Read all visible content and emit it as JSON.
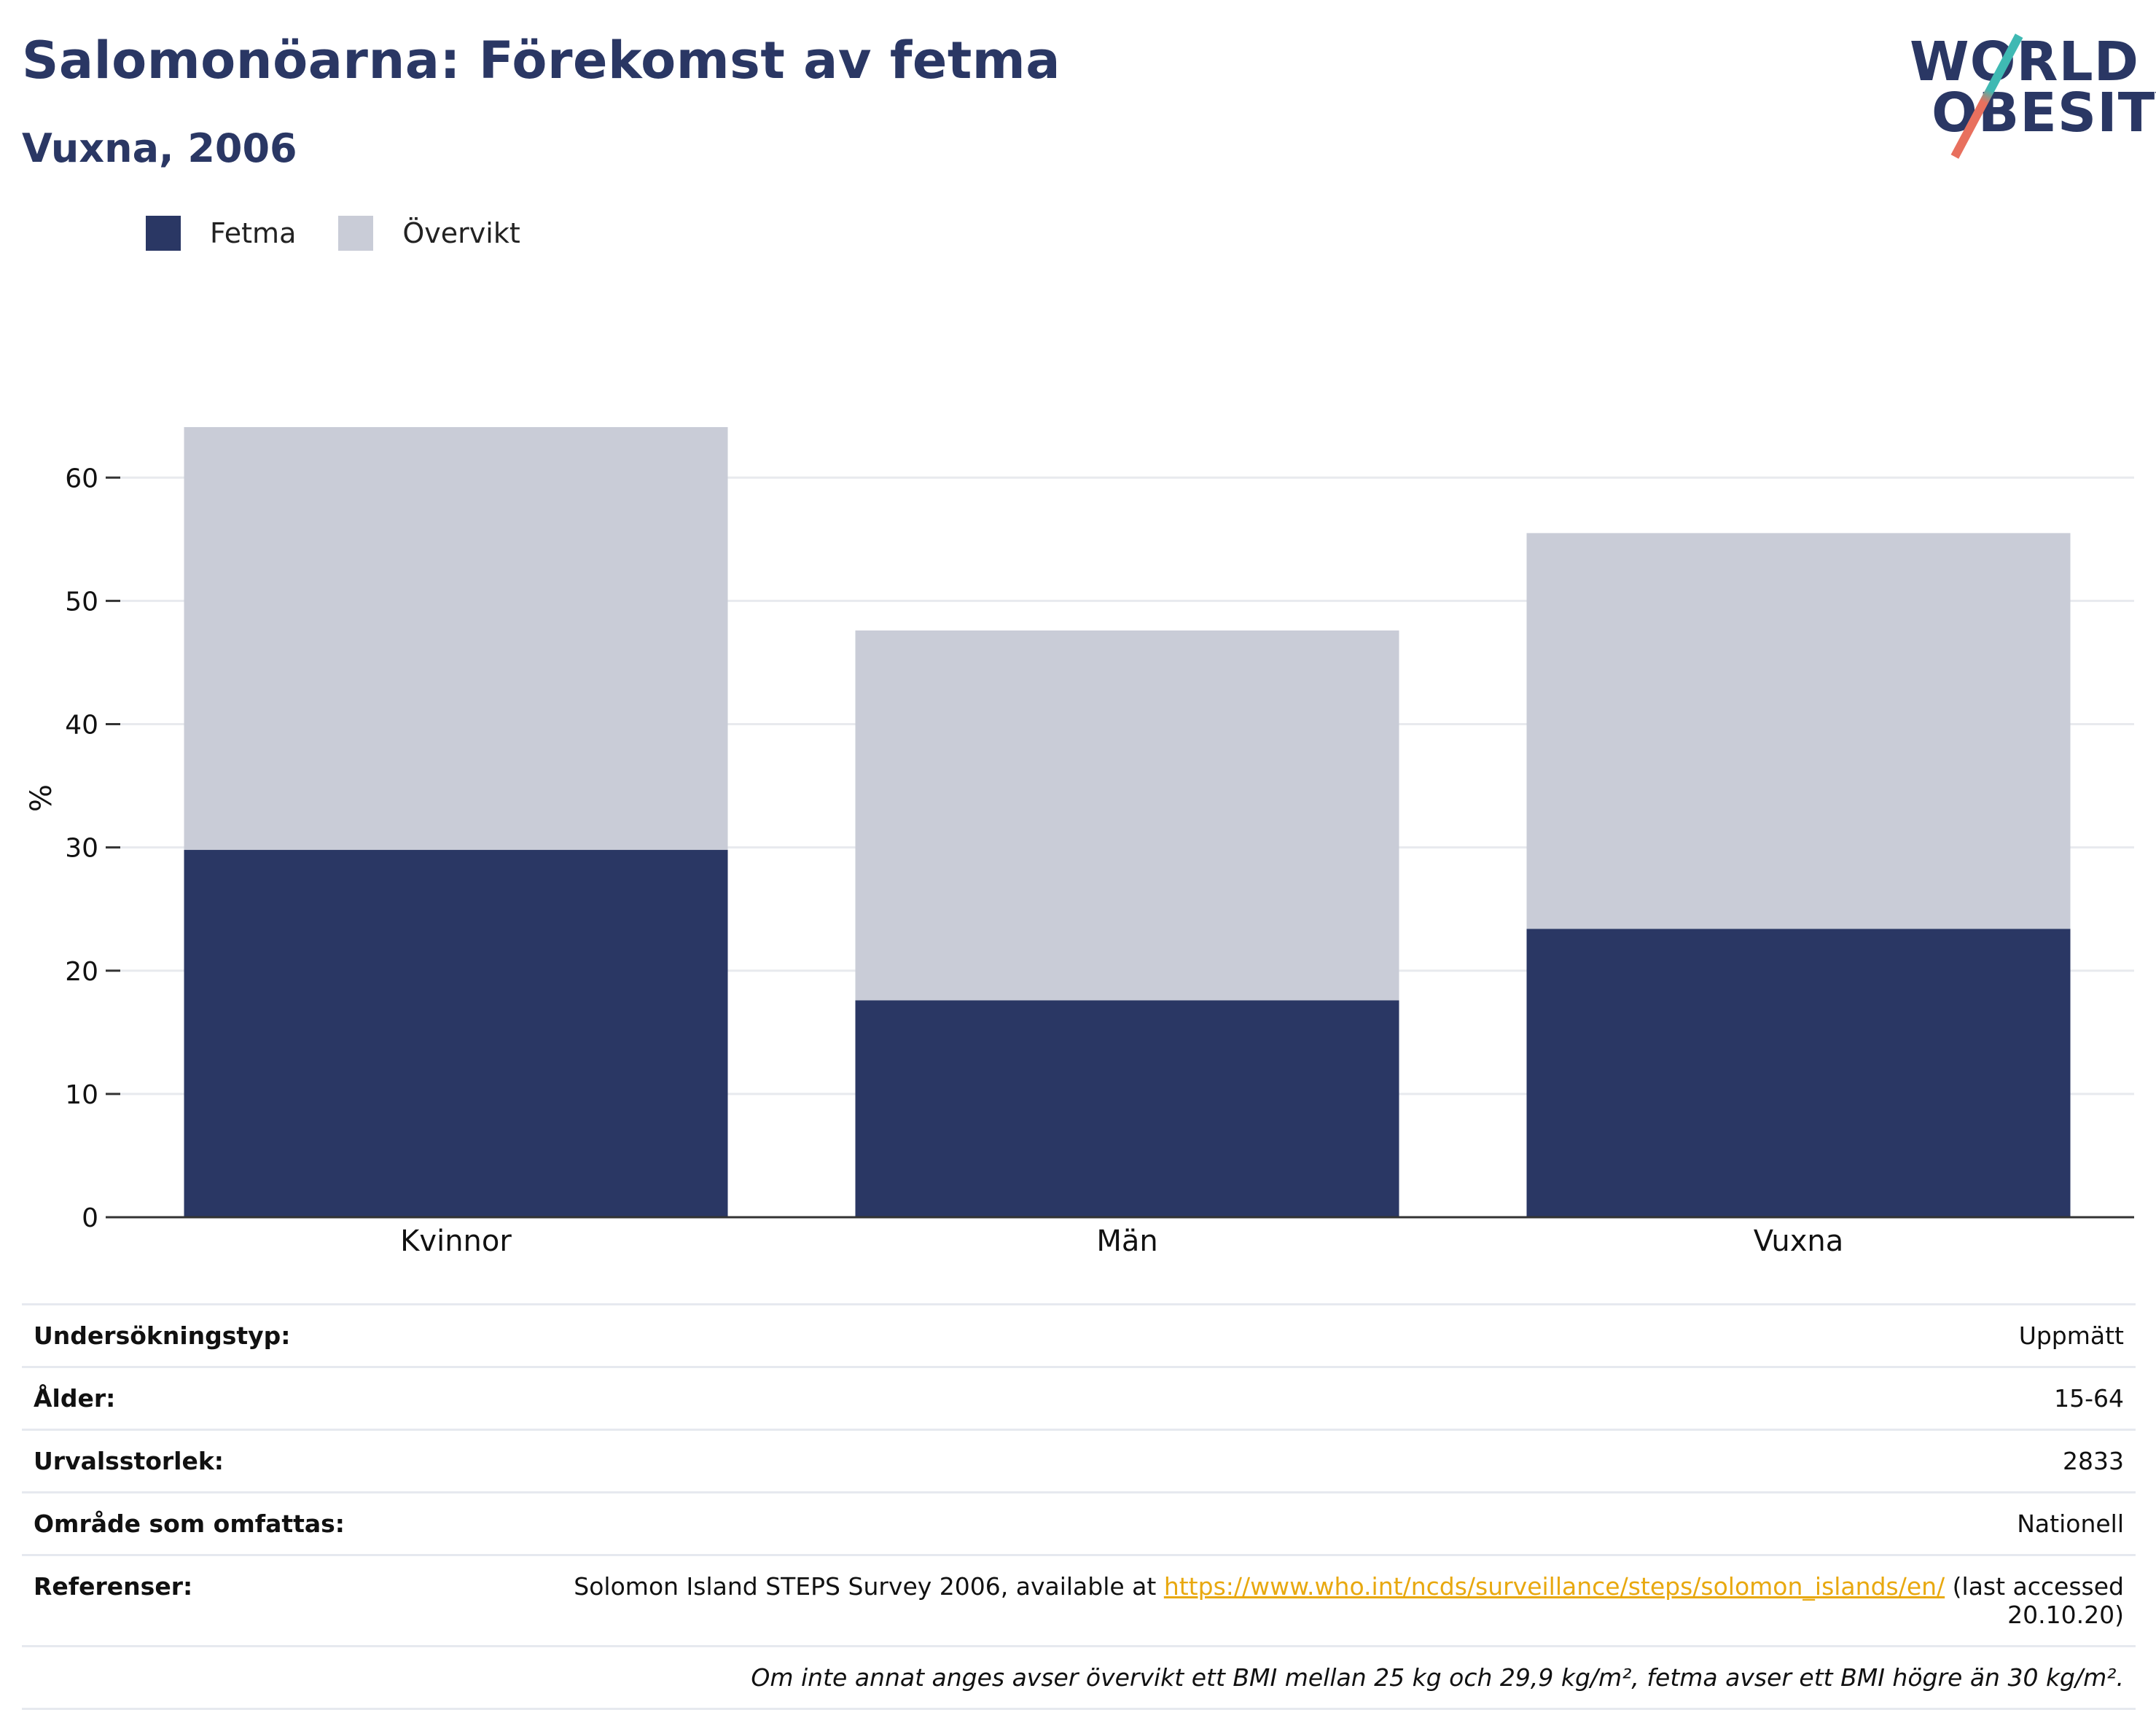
{
  "header": {
    "title": "Salomonöarna: Förekomst av fetma",
    "subtitle": "Vuxna, 2006"
  },
  "logo": {
    "line1": "WORLD",
    "line2": "OBESITY"
  },
  "colors": {
    "obesity": "#2a3764",
    "overweight": "#c9ccd7",
    "title": "#2a3764",
    "link": "#e8a80f"
  },
  "chart_data": {
    "type": "bar",
    "stacked": true,
    "categories": [
      "Kvinnor",
      "Män",
      "Vuxna"
    ],
    "series": [
      {
        "name": "Fetma",
        "values": [
          29.8,
          17.6,
          23.4
        ],
        "color": "#2a3764"
      },
      {
        "name": "Övervikt",
        "values": [
          34.3,
          30.0,
          32.1
        ],
        "color": "#c9ccd7"
      }
    ],
    "ylabel": "%",
    "ylim": [
      0,
      68
    ],
    "yticks": [
      0,
      10,
      20,
      30,
      40,
      50,
      60
    ],
    "grid": true,
    "legend": "top-left"
  },
  "meta": {
    "rows": [
      {
        "key": "Undersökningstyp:",
        "value": "Uppmätt"
      },
      {
        "key": "Ålder:",
        "value": "15-64"
      },
      {
        "key": "Urvalsstorlek:",
        "value": "2833"
      },
      {
        "key": "Område som omfattas:",
        "value": "Nationell"
      }
    ],
    "references": {
      "key": "Referenser:",
      "pre": "Solomon Island STEPS Survey 2006, available at ",
      "link": "https://www.who.int/ncds/surveillance/steps/solomon_islands/en/",
      "post": " (last accessed 20.10.20)"
    },
    "note": "Om inte annat anges avser övervikt ett BMI mellan 25 kg och 29,9 kg/m², fetma avser ett BMI högre än 30 kg/m²."
  }
}
